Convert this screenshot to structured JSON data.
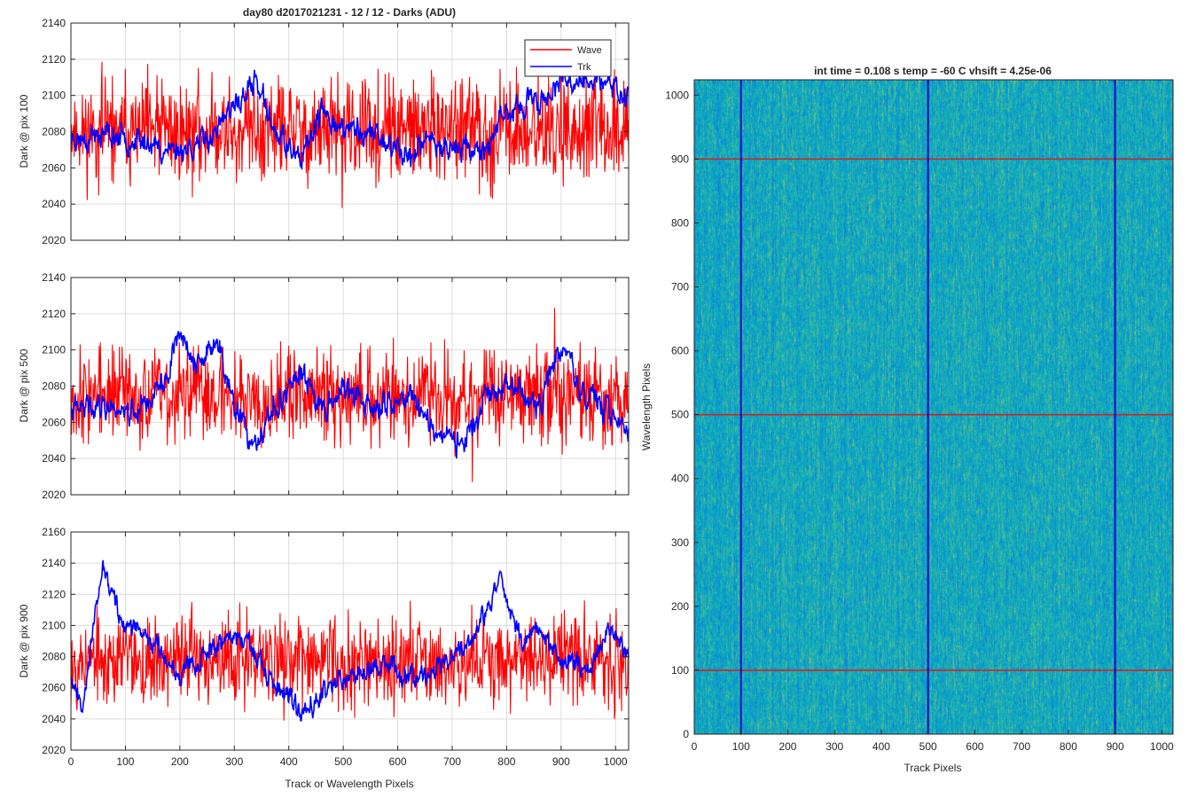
{
  "figure_title": "day80 d2017021231 - 12 / 12 - Darks (ADU)",
  "colors": {
    "wave": "#ff0000",
    "trk": "#0000ff",
    "marker_h": "#d62020",
    "marker_v": "#0a14c8"
  },
  "chart_data": [
    {
      "type": "line",
      "xlabel": "",
      "ylabel": "Dark @ pix 100",
      "xlim": [
        0,
        1024
      ],
      "ylim": [
        2020,
        2140
      ],
      "xticks": [
        0,
        100,
        200,
        300,
        400,
        500,
        600,
        700,
        800,
        900,
        1000
      ],
      "xtick_labels": [
        "",
        "",
        "",
        "",
        "",
        "",
        "",
        "",
        "",
        "",
        ""
      ],
      "yticks": [
        2020,
        2040,
        2060,
        2080,
        2100,
        2120,
        2140
      ],
      "ytick_labels": [
        "2020",
        "2040",
        "2060",
        "2080",
        "2100",
        "2120",
        "2140"
      ],
      "grid": true,
      "legend": {
        "placement": "top-right",
        "entries": [
          "Wave",
          "Trk"
        ]
      },
      "series": [
        {
          "name": "Wave",
          "mean": 2078,
          "noise_sd": 14,
          "seed": 11,
          "anchors": [
            [
              0,
              2080
            ],
            [
              1024,
              2080
            ]
          ]
        },
        {
          "name": "Trk",
          "mean": 2078,
          "noise_sd": 4,
          "seed": 23,
          "anchors": [
            [
              0,
              2076
            ],
            [
              60,
              2078
            ],
            [
              120,
              2076
            ],
            [
              170,
              2070
            ],
            [
              230,
              2072
            ],
            [
              270,
              2082
            ],
            [
              340,
              2108
            ],
            [
              370,
              2084
            ],
            [
              420,
              2062
            ],
            [
              460,
              2090
            ],
            [
              500,
              2082
            ],
            [
              560,
              2078
            ],
            [
              620,
              2066
            ],
            [
              660,
              2076
            ],
            [
              700,
              2072
            ],
            [
              760,
              2070
            ],
            [
              800,
              2090
            ],
            [
              850,
              2096
            ],
            [
              900,
              2106
            ],
            [
              950,
              2110
            ],
            [
              1000,
              2104
            ],
            [
              1024,
              2100
            ]
          ]
        }
      ]
    },
    {
      "type": "line",
      "xlabel": "",
      "ylabel": "Dark @ pix 500",
      "xlim": [
        0,
        1024
      ],
      "ylim": [
        2020,
        2140
      ],
      "xticks": [
        0,
        100,
        200,
        300,
        400,
        500,
        600,
        700,
        800,
        900,
        1000
      ],
      "xtick_labels": [
        "",
        "",
        "",
        "",
        "",
        "",
        "",
        "",
        "",
        "",
        ""
      ],
      "yticks": [
        2020,
        2040,
        2060,
        2080,
        2100,
        2120,
        2140
      ],
      "ytick_labels": [
        "2020",
        "2040",
        "2060",
        "2080",
        "2100",
        "2120",
        "2140"
      ],
      "grid": true,
      "series": [
        {
          "name": "Wave",
          "mean": 2075,
          "noise_sd": 13,
          "seed": 37,
          "anchors": [
            [
              0,
              2076
            ],
            [
              1024,
              2074
            ]
          ]
        },
        {
          "name": "Trk",
          "mean": 2072,
          "noise_sd": 4,
          "seed": 41,
          "anchors": [
            [
              0,
              2066
            ],
            [
              50,
              2070
            ],
            [
              120,
              2066
            ],
            [
              170,
              2080
            ],
            [
              200,
              2112
            ],
            [
              230,
              2090
            ],
            [
              270,
              2104
            ],
            [
              300,
              2068
            ],
            [
              340,
              2044
            ],
            [
              380,
              2072
            ],
            [
              420,
              2086
            ],
            [
              460,
              2070
            ],
            [
              500,
              2078
            ],
            [
              560,
              2066
            ],
            [
              620,
              2076
            ],
            [
              680,
              2052
            ],
            [
              720,
              2048
            ],
            [
              760,
              2070
            ],
            [
              800,
              2082
            ],
            [
              860,
              2068
            ],
            [
              900,
              2104
            ],
            [
              940,
              2074
            ],
            [
              1000,
              2066
            ],
            [
              1024,
              2054
            ]
          ]
        }
      ]
    },
    {
      "type": "line",
      "xlabel": "Track or Wavelength Pixels",
      "ylabel": "Dark @ pix 900",
      "xlim": [
        0,
        1024
      ],
      "ylim": [
        2020,
        2160
      ],
      "xticks": [
        0,
        100,
        200,
        300,
        400,
        500,
        600,
        700,
        800,
        900,
        1000
      ],
      "xtick_labels": [
        "0",
        "100",
        "200",
        "300",
        "400",
        "500",
        "600",
        "700",
        "800",
        "900",
        "1000"
      ],
      "yticks": [
        2020,
        2040,
        2060,
        2080,
        2100,
        2120,
        2140,
        2160
      ],
      "ytick_labels": [
        "2020",
        "2040",
        "2060",
        "2080",
        "2100",
        "2120",
        "2140",
        "2160"
      ],
      "grid": true,
      "series": [
        {
          "name": "Wave",
          "mean": 2078,
          "noise_sd": 14,
          "seed": 53,
          "anchors": [
            [
              0,
              2078
            ],
            [
              1024,
              2078
            ]
          ]
        },
        {
          "name": "Trk",
          "mean": 2078,
          "noise_sd": 4,
          "seed": 67,
          "anchors": [
            [
              0,
              2070
            ],
            [
              20,
              2050
            ],
            [
              60,
              2138
            ],
            [
              90,
              2104
            ],
            [
              150,
              2090
            ],
            [
              200,
              2070
            ],
            [
              260,
              2086
            ],
            [
              320,
              2094
            ],
            [
              360,
              2064
            ],
            [
              420,
              2046
            ],
            [
              470,
              2060
            ],
            [
              520,
              2070
            ],
            [
              580,
              2076
            ],
            [
              620,
              2068
            ],
            [
              680,
              2074
            ],
            [
              740,
              2092
            ],
            [
              790,
              2130
            ],
            [
              830,
              2086
            ],
            [
              860,
              2100
            ],
            [
              900,
              2078
            ],
            [
              950,
              2072
            ],
            [
              990,
              2098
            ],
            [
              1024,
              2082
            ]
          ]
        }
      ]
    },
    {
      "type": "heatmap",
      "title": "int time = 0.108 s   temp = -60 C   vhsift = 4.25e-06",
      "xlabel": "Track Pixels",
      "ylabel": "Wavelength Pixels",
      "xlim": [
        0,
        1024
      ],
      "ylim": [
        0,
        1024
      ],
      "xticks": [
        0,
        100,
        200,
        300,
        400,
        500,
        600,
        700,
        800,
        900,
        1000
      ],
      "xtick_labels": [
        "0",
        "100",
        "200",
        "300",
        "400",
        "500",
        "600",
        "700",
        "800",
        "900",
        "1000"
      ],
      "yticks": [
        0,
        100,
        200,
        300,
        400,
        500,
        600,
        700,
        800,
        900,
        1000
      ],
      "ytick_labels": [
        "0",
        "100",
        "200",
        "300",
        "400",
        "500",
        "600",
        "700",
        "800",
        "900",
        "1000"
      ],
      "colormap": "parula",
      "horizontal_markers": [
        100,
        500,
        900
      ],
      "vertical_markers": [
        100,
        500,
        900
      ]
    }
  ]
}
